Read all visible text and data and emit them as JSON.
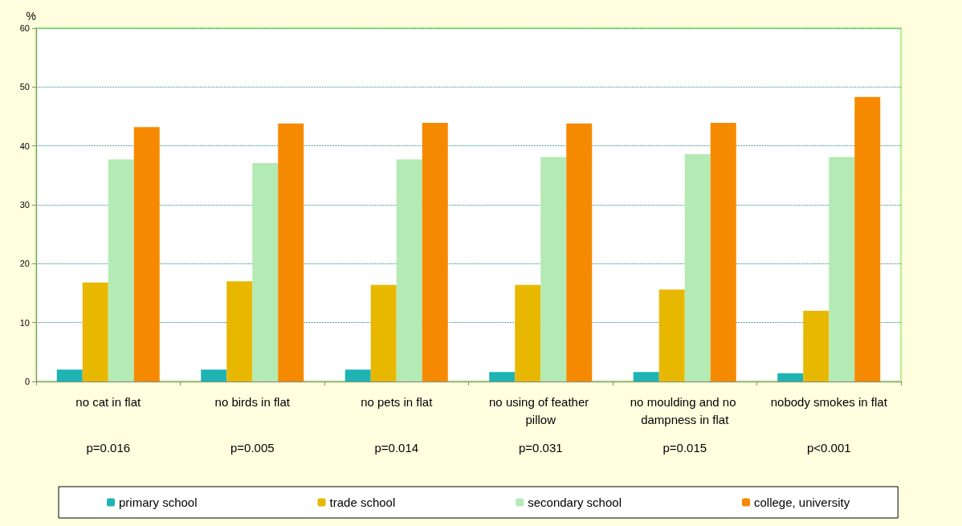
{
  "chart_data": {
    "type": "bar",
    "ylabel": "%",
    "categories": [
      "no cat in flat",
      "no birds in flat",
      "no pets in flat",
      "no using of feather pillow",
      "no moulding and no dampness in flat",
      "nobody smokes in flat"
    ],
    "series": [
      {
        "name": "primary school",
        "color": "#1fb3b3",
        "values": [
          2.0,
          2.0,
          2.0,
          1.6,
          1.6,
          1.4
        ]
      },
      {
        "name": "trade school",
        "color": "#e8b800",
        "values": [
          16.8,
          17.0,
          16.4,
          16.4,
          15.6,
          12.0
        ]
      },
      {
        "name": "secondary school",
        "color": "#b4eab4",
        "values": [
          37.7,
          37.1,
          37.7,
          38.1,
          38.6,
          38.1
        ]
      },
      {
        "name": "college, university",
        "color": "#f58a00",
        "values": [
          43.2,
          43.8,
          43.9,
          43.8,
          43.9,
          48.3
        ]
      }
    ],
    "ylim": [
      0,
      60
    ],
    "yticks": [
      0,
      10,
      20,
      30,
      40,
      50,
      60
    ],
    "grid": "y",
    "legend": "bottom",
    "annotations": [
      "p=0.016",
      "p=0.005",
      "p=0.014",
      "p=0.031",
      "p=0.015",
      "p<0.001"
    ]
  }
}
